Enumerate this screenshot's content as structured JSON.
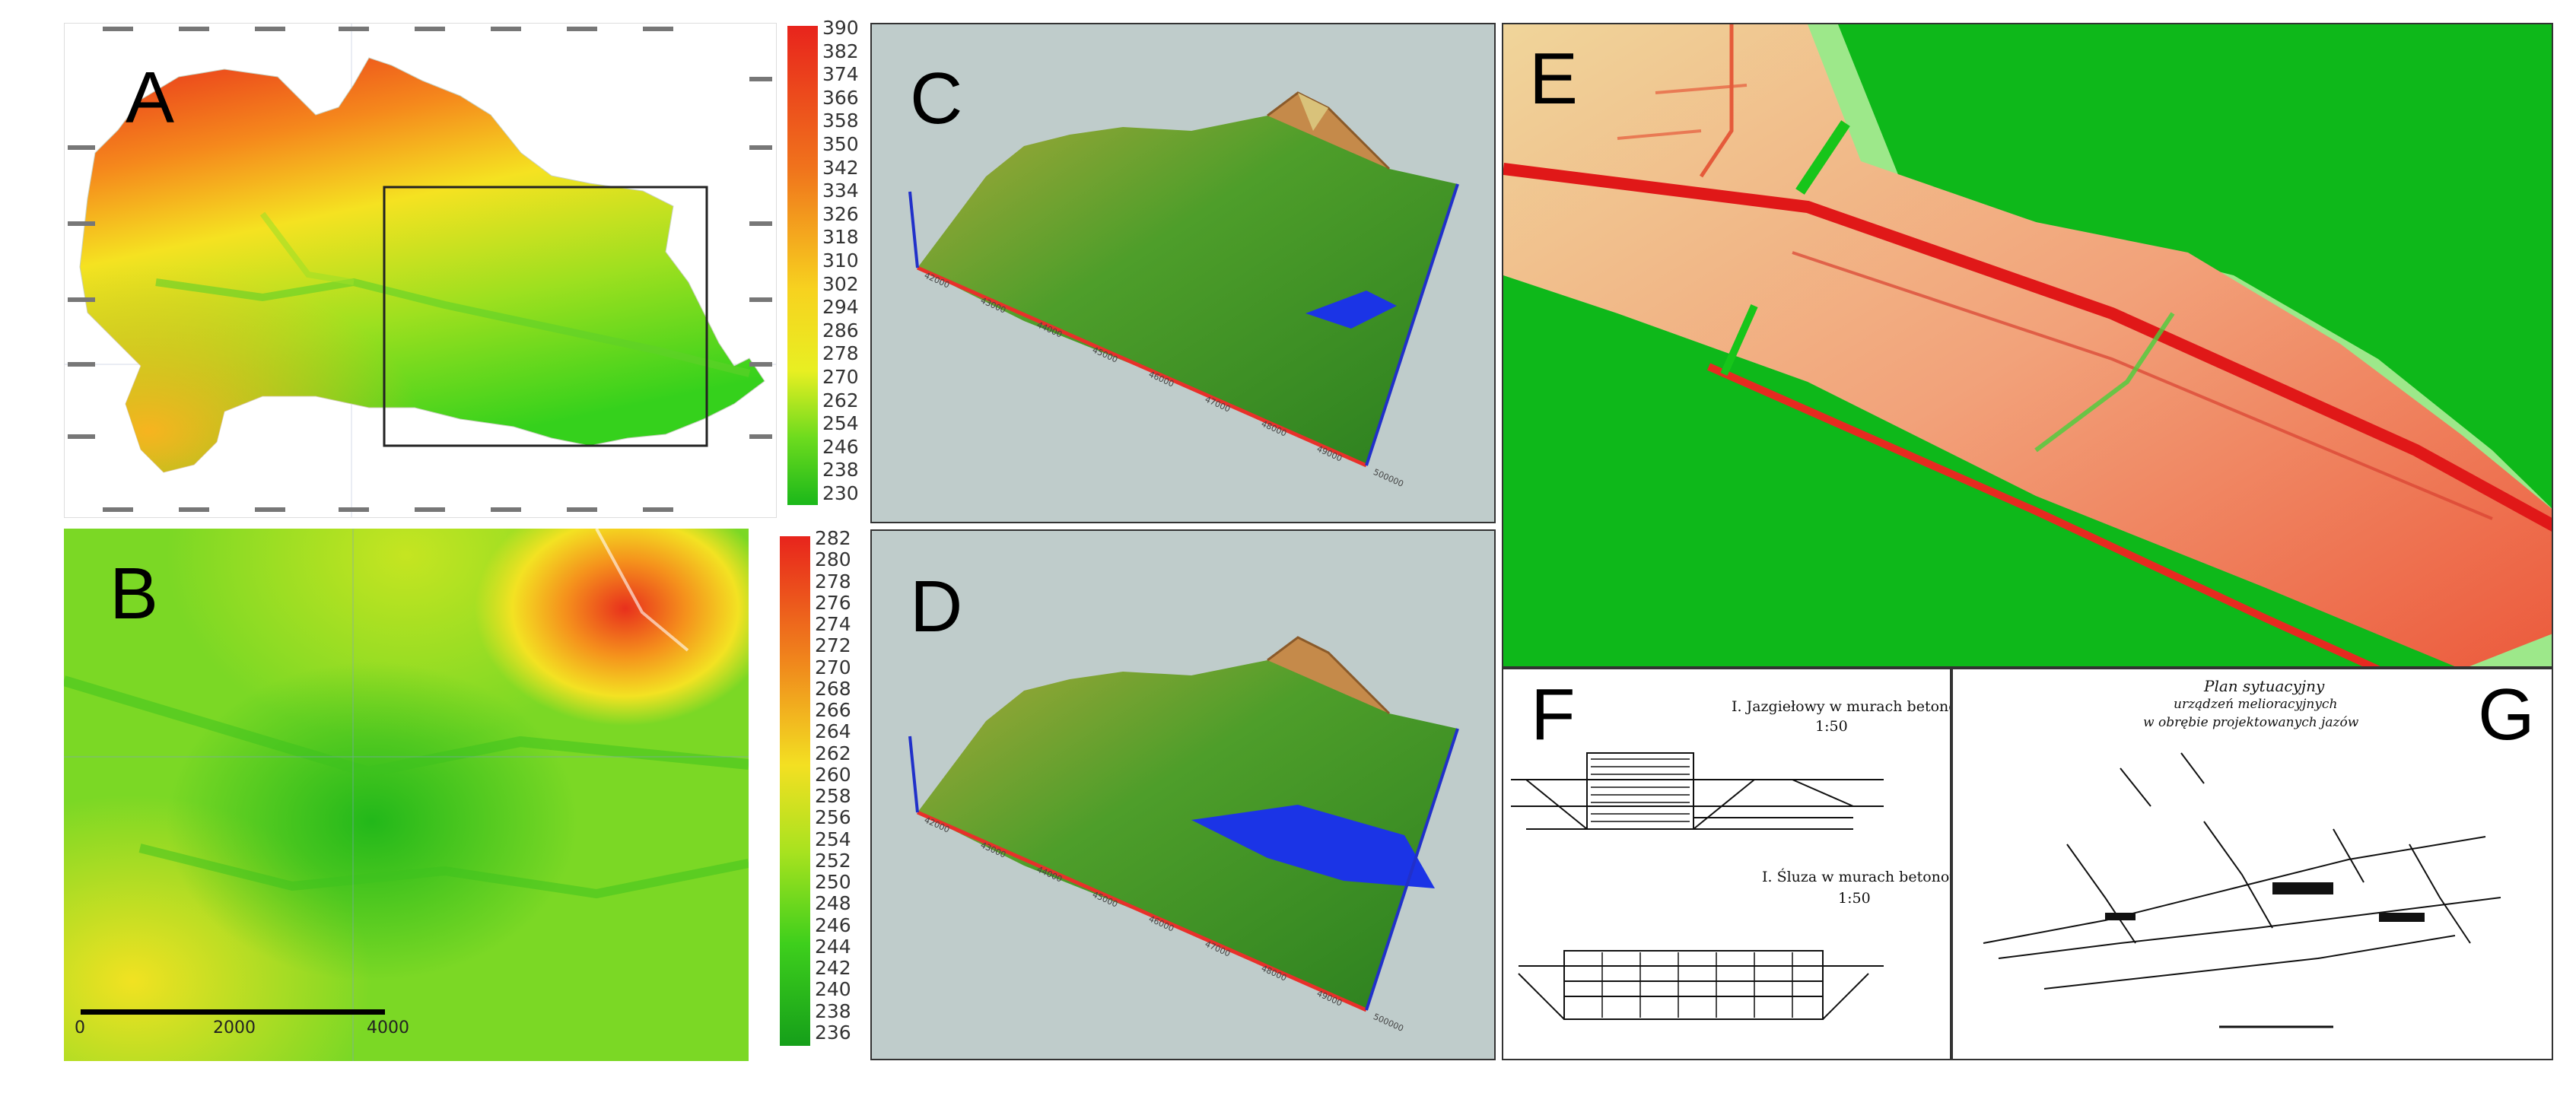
{
  "panels": {
    "a": {
      "letter": "A"
    },
    "b": {
      "letter": "B"
    },
    "c": {
      "letter": "C"
    },
    "d": {
      "letter": "D"
    },
    "e": {
      "letter": "E"
    },
    "f": {
      "letter": "F"
    },
    "g": {
      "letter": "G"
    }
  },
  "legend_a": {
    "labels": [
      "390",
      "382",
      "374",
      "366",
      "358",
      "350",
      "342",
      "334",
      "326",
      "318",
      "310",
      "302",
      "294",
      "286",
      "278",
      "270",
      "262",
      "254",
      "246",
      "238",
      "230"
    ]
  },
  "legend_b": {
    "labels": [
      "282",
      "280",
      "278",
      "276",
      "274",
      "272",
      "270",
      "268",
      "266",
      "264",
      "262",
      "260",
      "258",
      "256",
      "254",
      "252",
      "250",
      "248",
      "246",
      "244",
      "242",
      "240",
      "238",
      "236"
    ]
  },
  "scale_b": {
    "labels": [
      "0",
      "2000",
      "4000"
    ]
  },
  "axis_3d": {
    "labels": [
      "42000",
      "43000",
      "44000",
      "45000",
      "46000",
      "47000",
      "48000",
      "49000",
      "500000"
    ]
  },
  "doc_f": {
    "title1": "I. Jazgiełowy w murach betonowych",
    "scale1": "1:50",
    "title2": "I. Śluza w murach betonowych",
    "scale2": "1:50"
  },
  "doc_g": {
    "title_line1": "Plan sytuacyjny",
    "title_line2": "urządzeń melioracyjnych",
    "title_line3": "w obrębie projektowanych jazów"
  },
  "colors": {
    "elevation_ramp": [
      "#e8241c",
      "#f0741c",
      "#f7b21f",
      "#f3ea22",
      "#9ae01e",
      "#36d11a",
      "#0ea81a"
    ],
    "panel_bg_3d": "#bfcccb",
    "water": "#1b34e6",
    "axis_red": "#e8302a",
    "axis_blue": "#2130c9"
  }
}
